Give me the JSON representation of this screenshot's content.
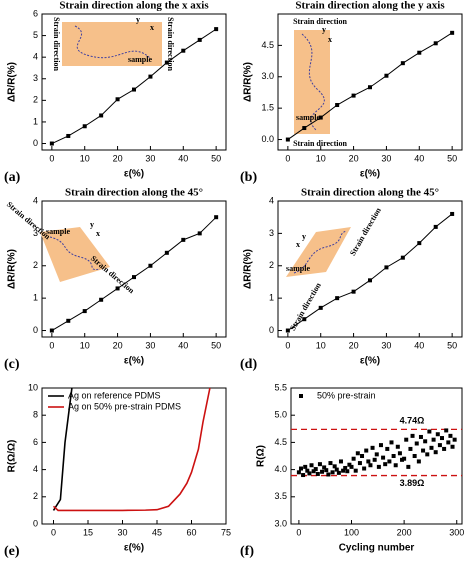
{
  "chart_data": [
    {
      "type": "line",
      "panel_label": "(a)",
      "title": "Strain direction along the x axis",
      "x_label": "ε(%)",
      "y_label": "ΔR/R(%)",
      "x": [
        0,
        5,
        10,
        15,
        20,
        25,
        30,
        35,
        40,
        45,
        50
      ],
      "values": [
        0,
        0.35,
        0.8,
        1.3,
        2.05,
        2.5,
        3.1,
        3.75,
        4.3,
        4.8,
        5.3
      ],
      "color": "#000000",
      "xlim": [
        -3,
        53
      ],
      "xticks": [
        0,
        10,
        20,
        30,
        40,
        50
      ],
      "ylim": [
        -0.3,
        6
      ],
      "yticks": [
        0,
        1,
        2,
        3,
        4,
        5,
        6
      ],
      "annotations": [
        "Strain direction",
        "Strain direction",
        "sample",
        "x",
        "y"
      ]
    },
    {
      "type": "line",
      "panel_label": "(b)",
      "title": "Strain direction along the y axis",
      "x_label": "ε(%)",
      "y_label": "ΔR/R(%)",
      "x": [
        0,
        5,
        10,
        15,
        20,
        25,
        30,
        35,
        40,
        45,
        50
      ],
      "values": [
        0,
        0.55,
        1.05,
        1.65,
        2.1,
        2.5,
        3.05,
        3.65,
        4.15,
        4.6,
        5.1
      ],
      "color": "#000000",
      "xlim": [
        -3,
        53
      ],
      "xticks": [
        0,
        10,
        20,
        30,
        40,
        50
      ],
      "ylim": [
        -0.5,
        6
      ],
      "yticks": [
        {
          "value": 0,
          "label": "0.0"
        },
        1.5,
        {
          "value": 3,
          "label": "3.0"
        },
        4.5
      ],
      "annotations": [
        "Strain direction",
        "Strain direction",
        "sample",
        "x",
        "y"
      ]
    },
    {
      "type": "line",
      "panel_label": "(c)",
      "title": "Strain direction along the 45°",
      "x_label": "ε(%)",
      "y_label": "ΔR/R(%)",
      "x": [
        0,
        5,
        10,
        15,
        20,
        25,
        30,
        35,
        40,
        45,
        50
      ],
      "values": [
        0,
        0.3,
        0.6,
        0.95,
        1.3,
        1.65,
        2.0,
        2.4,
        2.8,
        3.0,
        3.5
      ],
      "color": "#000000",
      "xlim": [
        -3,
        53
      ],
      "xticks": [
        0,
        10,
        20,
        30,
        40,
        50
      ],
      "ylim": [
        -0.2,
        4
      ],
      "yticks": [
        0,
        1,
        2,
        3,
        4
      ],
      "annotations": [
        "Strain direction",
        "Strain direction",
        "sample",
        "x",
        "y"
      ]
    },
    {
      "type": "line",
      "panel_label": "(d)",
      "title": "Strain direction along the 45°",
      "x_label": "ε(%)",
      "y_label": "ΔR/R(%)",
      "x": [
        0,
        5,
        10,
        15,
        20,
        25,
        30,
        35,
        40,
        45,
        50
      ],
      "values": [
        0,
        0.35,
        0.7,
        1.0,
        1.2,
        1.55,
        1.95,
        2.25,
        2.7,
        3.2,
        3.6
      ],
      "color": "#000000",
      "xlim": [
        -3,
        53
      ],
      "xticks": [
        0,
        10,
        20,
        30,
        40,
        50
      ],
      "ylim": [
        -0.2,
        4
      ],
      "yticks": [
        0,
        1,
        2,
        3,
        4
      ],
      "annotations": [
        "Strain direction",
        "Strain direction",
        "sample",
        "x",
        "y"
      ]
    },
    {
      "type": "line",
      "panel_label": "(e)",
      "x_label": "ε(%)",
      "y_label": "R(Ω/Ω)",
      "series": [
        {
          "name": "Ag on reference PDMS",
          "color": "#000000",
          "x": [
            0,
            3,
            5,
            8
          ],
          "values": [
            1,
            1.8,
            6,
            10
          ]
        },
        {
          "name": "Ag on 50% pre-strain PDMS",
          "color": "#cc1111",
          "x": [
            0,
            2,
            5,
            10,
            20,
            30,
            40,
            45,
            50,
            55,
            58,
            60,
            63,
            65,
            68
          ],
          "values": [
            1.3,
            1,
            1,
            1,
            1,
            1,
            1.02,
            1.05,
            1.3,
            2.2,
            3,
            3.8,
            5.5,
            7.5,
            10
          ]
        }
      ],
      "xlim": [
        -5,
        75
      ],
      "xticks": [
        0,
        15,
        30,
        45,
        60,
        75
      ],
      "ylim": [
        0,
        10
      ],
      "yticks": [
        0,
        2,
        4,
        6,
        8,
        10
      ]
    },
    {
      "type": "scatter",
      "panel_label": "(f)",
      "x_label": "Cycling number",
      "y_label": "R(Ω)",
      "series": [
        {
          "name": "50% pre-strain",
          "color": "#000000",
          "x": [
            0,
            4,
            8,
            12,
            16,
            20,
            24,
            28,
            32,
            36,
            40,
            44,
            48,
            52,
            56,
            60,
            64,
            68,
            72,
            76,
            80,
            84,
            88,
            92,
            96,
            100,
            104,
            108,
            112,
            116,
            120,
            124,
            128,
            132,
            136,
            140,
            144,
            148,
            152,
            156,
            160,
            164,
            168,
            172,
            176,
            180,
            184,
            188,
            192,
            196,
            200,
            204,
            208,
            212,
            216,
            220,
            224,
            228,
            232,
            236,
            240,
            244,
            248,
            252,
            256,
            260,
            264,
            268,
            272,
            276,
            280,
            284,
            288,
            292,
            296
          ],
          "values": [
            3.95,
            4.02,
            3.9,
            4.05,
            3.98,
            3.93,
            4.08,
            3.97,
            4.01,
            3.92,
            4.1,
            3.96,
            4.04,
            3.99,
            3.91,
            4.12,
            3.95,
            4.06,
            4.0,
            3.94,
            4.15,
            3.98,
            4.03,
            3.97,
            4.09,
            4.05,
            4.2,
            3.98,
            4.3,
            4.12,
            4.25,
            4.02,
            4.35,
            4.15,
            4.08,
            4.4,
            4.18,
            4.28,
            4.05,
            4.45,
            4.22,
            4.1,
            4.38,
            4.15,
            4.5,
            4.25,
            4.08,
            4.42,
            4.3,
            4.18,
            4.2,
            4.55,
            4.05,
            4.38,
            4.62,
            4.25,
            4.48,
            4.15,
            4.6,
            4.35,
            4.52,
            4.28,
            4.7,
            4.4,
            4.55,
            4.32,
            4.65,
            4.45,
            4.58,
            4.38,
            4.72,
            4.5,
            4.62,
            4.42,
            4.55
          ]
        }
      ],
      "hlines": [
        {
          "value": 4.74,
          "label": "4.74Ω",
          "color": "#cc1111"
        },
        {
          "value": 3.89,
          "label": "3.89Ω",
          "color": "#cc1111"
        }
      ],
      "xlim": [
        -15,
        310
      ],
      "xticks": [
        0,
        100,
        200,
        300
      ],
      "ylim": [
        3.0,
        5.5
      ],
      "yticks": [
        {
          "value": 3.0,
          "label": "3.0"
        },
        3.5,
        {
          "value": 4.0,
          "label": "4.0"
        },
        4.5,
        {
          "value": 5.0,
          "label": "5.0"
        },
        5.5
      ]
    }
  ]
}
